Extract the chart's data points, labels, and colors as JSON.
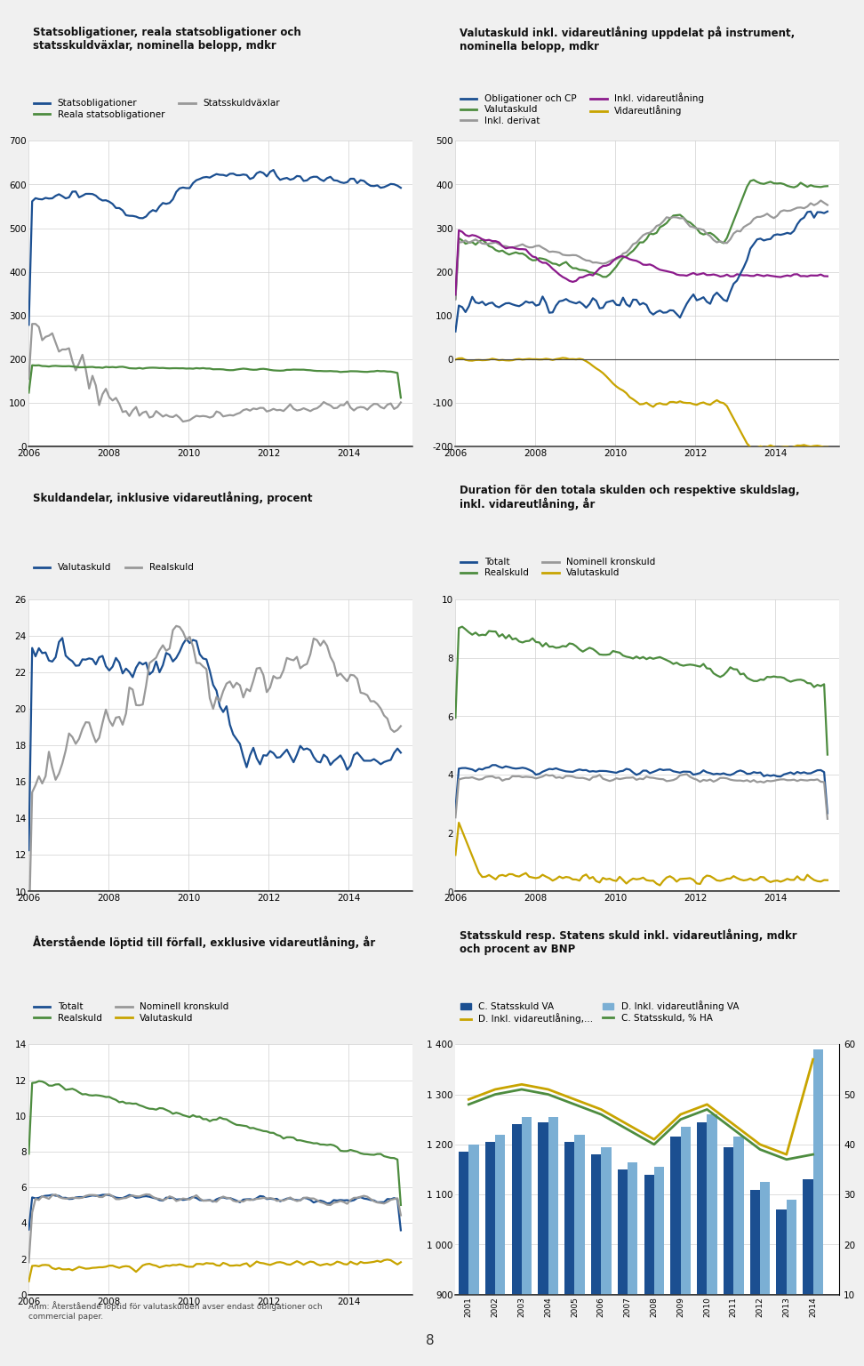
{
  "bg": "#f0f0f0",
  "title_bg": "#d3d3d3",
  "white": "#ffffff",
  "panel1": {
    "title": "Statsobligationer, reala statsobligationer och\nstatsskuldväxlar, nominella belopp, mdkr",
    "legend": [
      "Statsobligationer",
      "Statsskuldväxlar",
      "Reala statsobligationer"
    ],
    "colors": [
      "#1b4f91",
      "#999999",
      "#4d8c3f"
    ],
    "ylim": [
      0,
      700
    ],
    "yticks": [
      0,
      100,
      200,
      300,
      400,
      500,
      600,
      700
    ],
    "xticks": [
      2006,
      2008,
      2010,
      2012,
      2014
    ]
  },
  "panel2": {
    "title": "Valutaskuld inkl. vidareutlåning uppdelat på instrument,\nnominella belopp, mdkr",
    "legend": [
      "Obligationer och CP",
      "Inkl. derivat",
      "Vidareutlåning",
      "Valutaskuld",
      "Inkl. vidareutlåning"
    ],
    "colors": [
      "#1b4f91",
      "#999999",
      "#c8a400",
      "#4d8c3f",
      "#8b1a8b"
    ],
    "ylim": [
      -200,
      500
    ],
    "yticks": [
      -200,
      -100,
      0,
      100,
      200,
      300,
      400,
      500
    ],
    "xticks": [
      2006,
      2008,
      2010,
      2012,
      2014
    ]
  },
  "panel3": {
    "title": "Skuldandelar, inklusive vidareutlåning, procent",
    "legend": [
      "Valutaskuld",
      "Realskuld"
    ],
    "colors": [
      "#1b4f91",
      "#999999"
    ],
    "ylim": [
      10,
      26
    ],
    "yticks": [
      10,
      12,
      14,
      16,
      18,
      20,
      22,
      24,
      26
    ],
    "xticks": [
      2006,
      2008,
      2010,
      2012,
      2014
    ]
  },
  "panel4": {
    "title": "Duration för den totala skulden och respektive skuldslag,\ninkl. vidareutlåning, år",
    "legend": [
      "Totalt",
      "Nominell kronskuld",
      "Realskuld",
      "Valutaskuld"
    ],
    "colors": [
      "#1b4f91",
      "#999999",
      "#4d8c3f",
      "#c8a400"
    ],
    "ylim": [
      0,
      10
    ],
    "yticks": [
      0,
      2,
      4,
      6,
      8,
      10
    ],
    "xticks": [
      2006,
      2008,
      2010,
      2012,
      2014
    ]
  },
  "panel5": {
    "title": "Återstående löptid till förfall, exklusive vidareutlåning, år",
    "legend": [
      "Totalt",
      "Nominell kronskuld",
      "Realskuld",
      "Valutaskuld"
    ],
    "colors": [
      "#1b4f91",
      "#999999",
      "#4d8c3f",
      "#c8a400"
    ],
    "ylim": [
      0,
      14
    ],
    "yticks": [
      0,
      2,
      4,
      6,
      8,
      10,
      12,
      14
    ],
    "xticks": [
      2006,
      2008,
      2010,
      2012,
      2014
    ]
  },
  "panel6": {
    "title": "Statsskuld resp. Statens skuld inkl. vidareutlåning, mdkr\noch procent av BNP",
    "legend_labels": [
      "C. Statsskuld VA",
      "D. Inkl. vidareutlåning VA",
      "D. Inkl. vidareutlåning,...",
      "C. Statsskuld, % HA"
    ],
    "bar_colors": [
      "#1b4f91",
      "#7bafd4"
    ],
    "line_colors": [
      "#c8a400",
      "#4d8c3f"
    ],
    "ylim_left": [
      900,
      1400
    ],
    "ylim_right": [
      10,
      60
    ],
    "yticks_left": [
      900,
      1000,
      1100,
      1200,
      1300,
      1400
    ],
    "yticks_right": [
      10,
      20,
      30,
      40,
      50,
      60
    ],
    "bar_years": [
      2001,
      2002,
      2003,
      2004,
      2005,
      2006,
      2007,
      2008,
      2009,
      2010,
      2011,
      2012,
      2013,
      2014
    ],
    "c_va": [
      1185,
      1205,
      1240,
      1245,
      1205,
      1180,
      1150,
      1140,
      1215,
      1245,
      1195,
      1110,
      1070,
      1130
    ],
    "d_va": [
      1200,
      1220,
      1255,
      1255,
      1220,
      1195,
      1165,
      1155,
      1235,
      1260,
      1215,
      1125,
      1090,
      1390
    ],
    "d_pct": [
      49,
      51,
      52,
      51,
      49,
      47,
      44,
      41,
      46,
      48,
      44,
      40,
      38,
      57
    ],
    "c_pct": [
      48,
      50,
      51,
      50,
      48,
      46,
      43,
      40,
      45,
      47,
      43,
      39,
      37,
      38
    ]
  },
  "note": "Anm: Återstående löptid för valutaskulden avser endast obligationer och\ncommercial paper.",
  "page_number": "8"
}
